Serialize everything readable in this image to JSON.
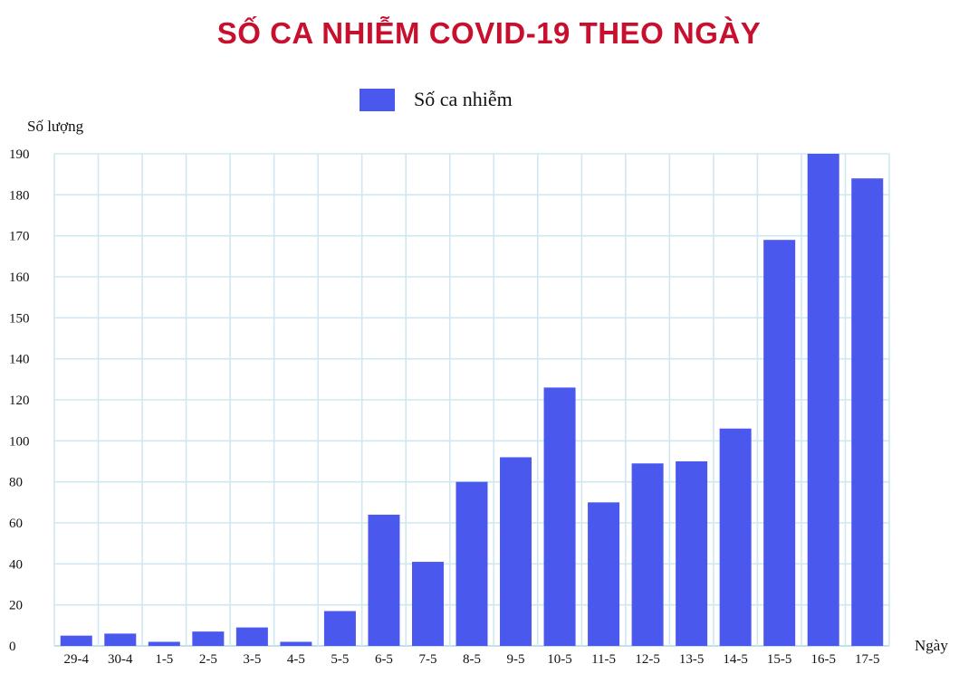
{
  "chart_data": {
    "type": "bar",
    "title": "SỐ CA NHIỄM COVID-19 THEO NGÀY",
    "xlabel": "Ngày",
    "ylabel": "Số lượng",
    "legend": {
      "position": "top-center"
    },
    "grid": true,
    "categories": [
      "29-4",
      "30-4",
      "1-5",
      "2-5",
      "3-5",
      "4-5",
      "5-5",
      "6-5",
      "7-5",
      "8-5",
      "9-5",
      "10-5",
      "11-5",
      "12-5",
      "13-5",
      "14-5",
      "15-5",
      "16-5",
      "17-5"
    ],
    "series": [
      {
        "name": "Số ca nhiễm",
        "color": "#4a58ee",
        "values": [
          5,
          6,
          2,
          7,
          9,
          2,
          17,
          64,
          41,
          80,
          92,
          126,
          70,
          89,
          90,
          106,
          169,
          190,
          184
        ]
      }
    ],
    "y_ticks": [
      0,
      20,
      40,
      60,
      80,
      100,
      120,
      140,
      150,
      160,
      170,
      180,
      190
    ],
    "ylim": [
      0,
      190
    ]
  }
}
